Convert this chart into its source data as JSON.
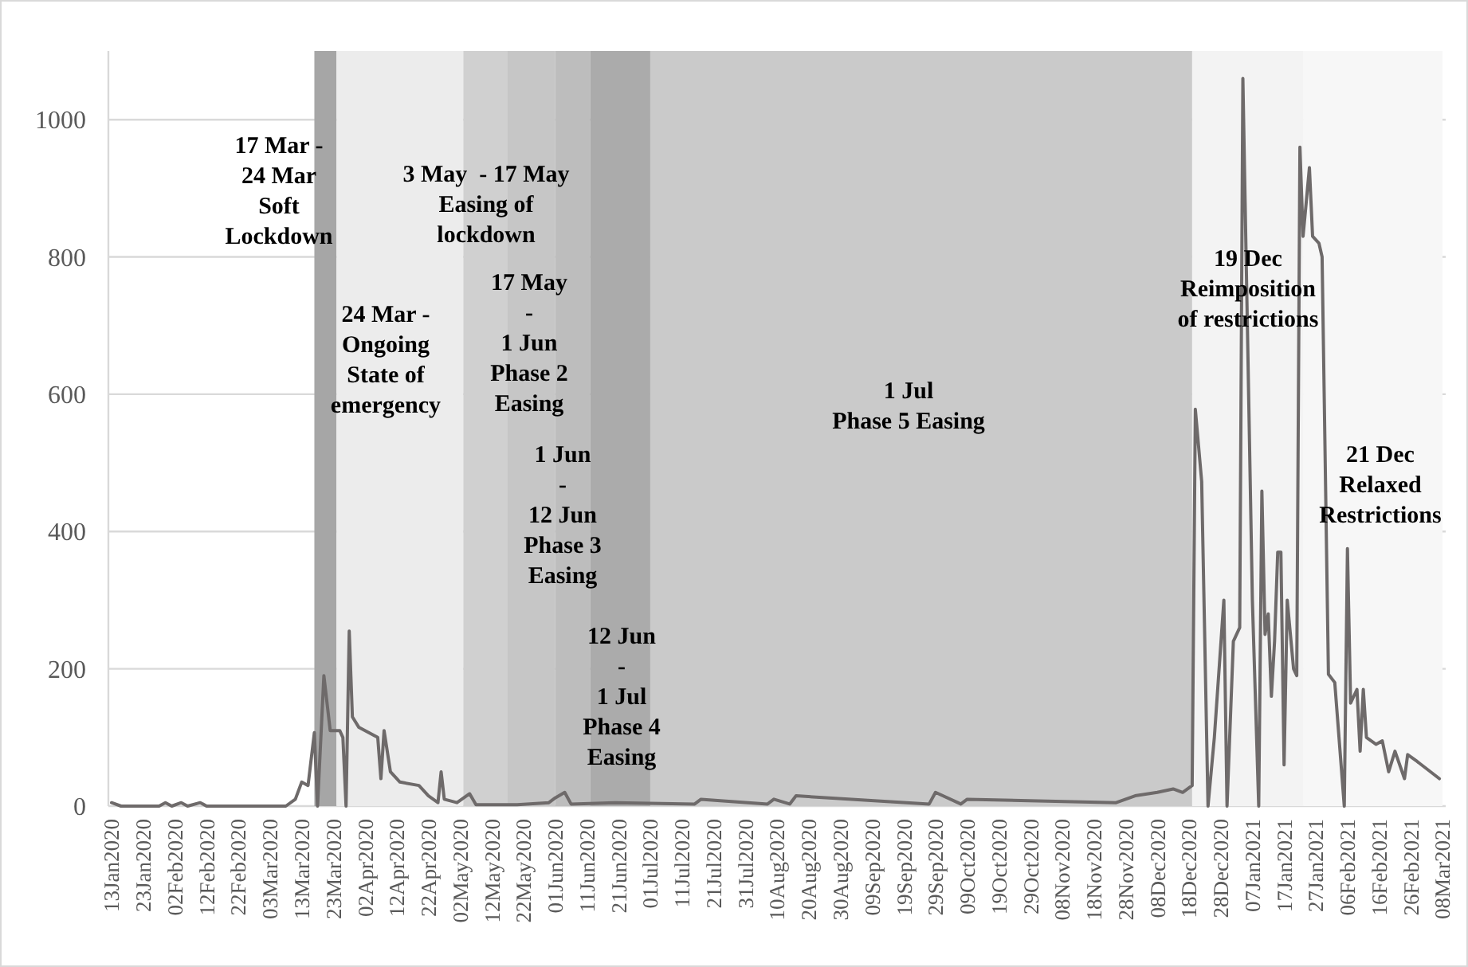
{
  "chart_data": {
    "type": "line",
    "grid": "y",
    "marker": "none",
    "line_style": "solid",
    "xlim": [
      "2020-01-12",
      "2021-03-09"
    ],
    "ylim": [
      0,
      1100
    ],
    "yticks": [
      0,
      200,
      400,
      600,
      800,
      1000
    ],
    "xticks": [
      {
        "value": "2020-01-13",
        "label": "13Jan2020"
      },
      {
        "value": "2020-01-23",
        "label": "23Jan2020"
      },
      {
        "value": "2020-02-02",
        "label": "02Feb2020"
      },
      {
        "value": "2020-02-12",
        "label": "12Feb2020"
      },
      {
        "value": "2020-02-22",
        "label": "22Feb2020"
      },
      {
        "value": "2020-03-03",
        "label": "03Mar2020"
      },
      {
        "value": "2020-03-13",
        "label": "13Mar2020"
      },
      {
        "value": "2020-03-23",
        "label": "23Mar2020"
      },
      {
        "value": "2020-04-02",
        "label": "02Apr2020"
      },
      {
        "value": "2020-04-12",
        "label": "12Apr2020"
      },
      {
        "value": "2020-04-22",
        "label": "22Apr2020"
      },
      {
        "value": "2020-05-02",
        "label": "02May2020"
      },
      {
        "value": "2020-05-12",
        "label": "12May2020"
      },
      {
        "value": "2020-05-22",
        "label": "22May2020"
      },
      {
        "value": "2020-06-01",
        "label": "01Jun2020"
      },
      {
        "value": "2020-06-11",
        "label": "11Jun2020"
      },
      {
        "value": "2020-06-21",
        "label": "21Jun2020"
      },
      {
        "value": "2020-07-01",
        "label": "01Jul2020"
      },
      {
        "value": "2020-07-11",
        "label": "11Jul2020"
      },
      {
        "value": "2020-07-21",
        "label": "21Jul2020"
      },
      {
        "value": "2020-07-31",
        "label": "31Jul2020"
      },
      {
        "value": "2020-08-10",
        "label": "10Aug2020"
      },
      {
        "value": "2020-08-20",
        "label": "20Aug2020"
      },
      {
        "value": "2020-08-30",
        "label": "30Aug2020"
      },
      {
        "value": "2020-09-09",
        "label": "09Sep2020"
      },
      {
        "value": "2020-09-19",
        "label": "19Sep2020"
      },
      {
        "value": "2020-09-29",
        "label": "29Sep2020"
      },
      {
        "value": "2020-10-09",
        "label": "09Oct2020"
      },
      {
        "value": "2020-10-19",
        "label": "19Oct2020"
      },
      {
        "value": "2020-10-29",
        "label": "29Oct2020"
      },
      {
        "value": "2020-11-08",
        "label": "08Nov2020"
      },
      {
        "value": "2020-11-18",
        "label": "18Nov2020"
      },
      {
        "value": "2020-11-28",
        "label": "28Nov2020"
      },
      {
        "value": "2020-12-08",
        "label": "08Dec2020"
      },
      {
        "value": "2020-12-18",
        "label": "18Dec2020"
      },
      {
        "value": "2020-12-28",
        "label": "28Dec2020"
      },
      {
        "value": "2021-01-07",
        "label": "07Jan2021"
      },
      {
        "value": "2021-01-17",
        "label": "17Jan2021"
      },
      {
        "value": "2021-01-27",
        "label": "27Jan2021"
      },
      {
        "value": "2021-02-06",
        "label": "06Feb2021"
      },
      {
        "value": "2021-02-16",
        "label": "16Feb2021"
      },
      {
        "value": "2021-02-26",
        "label": "26Feb2021"
      },
      {
        "value": "2021-03-08",
        "label": "08Mar2021"
      }
    ],
    "bands": [
      {
        "axis": "x",
        "from": "2020-03-17",
        "to": "2020-03-24",
        "label": "17 Mar -\n24 Mar\nSoft\nLockdown",
        "color": "#a6a6a6"
      },
      {
        "axis": "x",
        "from": "2020-03-24",
        "to": "2020-05-03",
        "label": "24 Mar -\nOngoing\nState of\nemergency",
        "color": "#ececec"
      },
      {
        "axis": "x",
        "from": "2020-05-03",
        "to": "2020-05-17",
        "label": "3 May  - 17 May\nEasing of\nlockdown",
        "color": "#d0d0d0"
      },
      {
        "axis": "x",
        "from": "2020-05-17",
        "to": "2020-06-01",
        "label": "17 May\n-\n1 Jun\nPhase 2\nEasing",
        "color": "#c6c6c6"
      },
      {
        "axis": "x",
        "from": "2020-06-01",
        "to": "2020-06-12",
        "label": "1 Jun\n-\n12 Jun\nPhase 3\nEasing",
        "color": "#bdbdbd"
      },
      {
        "axis": "x",
        "from": "2020-06-12",
        "to": "2020-07-01",
        "label": "12 Jun\n-\n1 Jul\nPhase 4\nEasing",
        "color": "#ababab"
      },
      {
        "axis": "x",
        "from": "2020-07-01",
        "to": "2020-12-19",
        "label": "1 Jul\nPhase 5 Easing",
        "color": "#cacaca"
      },
      {
        "axis": "x",
        "from": "2020-12-19",
        "to": "2021-01-23",
        "label": "19 Dec\nReimposition\nof restrictions",
        "color": "#f3f3f3"
      },
      {
        "axis": "x",
        "from": "2021-01-23",
        "to": "2021-03-08",
        "label": "21 Dec\nRelaxed\nRestrictions",
        "color": "#f7f7f7"
      }
    ],
    "series": [
      {
        "color": "#6e6a6a",
        "x": [
          "2020-01-13",
          "2020-01-16",
          "2020-01-28",
          "2020-01-30",
          "2020-02-01",
          "2020-02-04",
          "2020-02-06",
          "2020-02-10",
          "2020-02-12",
          "2020-03-01",
          "2020-03-08",
          "2020-03-11",
          "2020-03-13",
          "2020-03-15",
          "2020-03-17",
          "2020-03-18",
          "2020-03-20",
          "2020-03-22",
          "2020-03-25",
          "2020-03-26",
          "2020-03-27",
          "2020-03-28",
          "2020-03-29",
          "2020-03-31",
          "2020-04-06",
          "2020-04-07",
          "2020-04-08",
          "2020-04-10",
          "2020-04-13",
          "2020-04-19",
          "2020-04-22",
          "2020-04-25",
          "2020-04-26",
          "2020-04-27",
          "2020-05-01",
          "2020-05-05",
          "2020-05-07",
          "2020-05-20",
          "2020-05-30",
          "2020-06-01",
          "2020-06-04",
          "2020-06-06",
          "2020-06-20",
          "2020-07-15",
          "2020-07-17",
          "2020-08-07",
          "2020-08-09",
          "2020-08-14",
          "2020-08-16",
          "2020-09-27",
          "2020-09-29",
          "2020-10-07",
          "2020-10-09",
          "2020-11-25",
          "2020-12-01",
          "2020-12-08",
          "2020-12-13",
          "2020-12-16",
          "2020-12-19",
          "2020-12-20",
          "2020-12-22",
          "2020-12-24",
          "2020-12-26",
          "2020-12-29",
          "2020-12-30",
          "2021-01-01",
          "2021-01-03",
          "2021-01-04",
          "2021-01-07",
          "2021-01-09",
          "2021-01-10",
          "2021-01-11",
          "2021-01-12",
          "2021-01-13",
          "2021-01-14",
          "2021-01-15",
          "2021-01-16",
          "2021-01-17",
          "2021-01-18",
          "2021-01-20",
          "2021-01-21",
          "2021-01-22",
          "2021-01-23",
          "2021-01-25",
          "2021-01-26",
          "2021-01-28",
          "2021-01-29",
          "2021-01-31",
          "2021-02-02",
          "2021-02-05",
          "2021-02-06",
          "2021-02-07",
          "2021-02-09",
          "2021-02-10",
          "2021-02-11",
          "2021-02-12",
          "2021-02-15",
          "2021-02-17",
          "2021-02-19",
          "2021-02-21",
          "2021-02-24",
          "2021-02-25",
          "2021-02-28",
          "2021-03-07"
        ],
        "values": [
          5,
          0,
          0,
          5,
          0,
          5,
          0,
          5,
          0,
          0,
          0,
          10,
          35,
          30,
          107,
          0,
          190,
          110,
          110,
          100,
          0,
          255,
          130,
          115,
          100,
          40,
          110,
          50,
          35,
          30,
          15,
          5,
          50,
          10,
          5,
          18,
          2,
          2,
          5,
          12,
          20,
          3,
          5,
          3,
          10,
          3,
          10,
          3,
          15,
          3,
          20,
          3,
          10,
          5,
          15,
          20,
          25,
          20,
          30,
          578,
          473,
          0,
          100,
          300,
          0,
          240,
          260,
          1060,
          300,
          0,
          459,
          250,
          280,
          160,
          240,
          370,
          370,
          60,
          300,
          200,
          190,
          960,
          830,
          930,
          830,
          820,
          800,
          192,
          180,
          0,
          375,
          150,
          170,
          80,
          170,
          100,
          90,
          95,
          50,
          80,
          40,
          75,
          65,
          40
        ]
      }
    ]
  }
}
